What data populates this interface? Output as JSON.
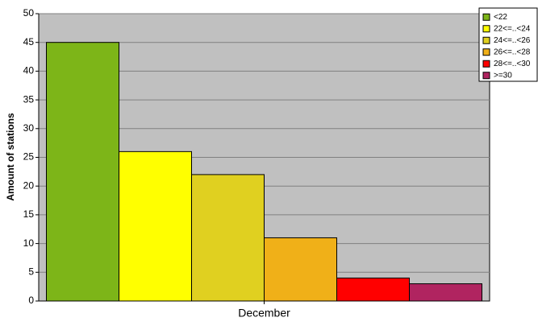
{
  "chart_data": {
    "type": "bar",
    "ylabel": "Amount of stations",
    "categories": [
      "December"
    ],
    "series": [
      {
        "name": "<22",
        "color": "#7db518",
        "values": [
          45
        ]
      },
      {
        "name": "22<=..<24",
        "color": "#ffff00",
        "values": [
          26
        ]
      },
      {
        "name": "24<=..<26",
        "color": "#e0d020",
        "values": [
          22
        ]
      },
      {
        "name": "26<=..<28",
        "color": "#f0b018",
        "values": [
          11
        ]
      },
      {
        "name": "28<=..<30",
        "color": "#ff0000",
        "values": [
          4
        ]
      },
      {
        "name": ">=30",
        "color": "#b02460",
        "values": [
          3
        ]
      }
    ],
    "ylim": [
      0,
      50
    ],
    "yticks": [
      0,
      5,
      10,
      15,
      20,
      25,
      30,
      35,
      40,
      45,
      50
    ],
    "grid": true,
    "legend": "top-right"
  }
}
